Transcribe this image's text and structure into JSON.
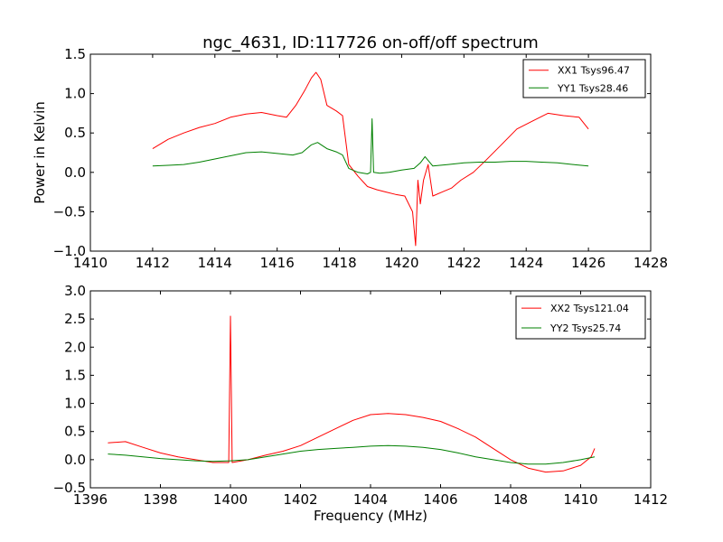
{
  "figure": {
    "title": "ngc_4631, ID:117726 on-off/off spectrum"
  },
  "chart_data": [
    {
      "type": "line",
      "title": "ngc_4631, ID:117726 on-off/off spectrum",
      "xlabel": "",
      "ylabel": "Power in Kelvin",
      "xlim": [
        1410,
        1428
      ],
      "ylim": [
        -1.0,
        1.5
      ],
      "xticks": [
        1410,
        1412,
        1414,
        1416,
        1418,
        1420,
        1422,
        1424,
        1426,
        1428
      ],
      "yticks": [
        -1.0,
        -0.5,
        0.0,
        0.5,
        1.0,
        1.5
      ],
      "grid": false,
      "legend_position": "top-right",
      "series": [
        {
          "name": "XX1 Tsys96.47",
          "color": "#ff0000",
          "x": [
            1412.0,
            1412.5,
            1413.0,
            1413.5,
            1414.0,
            1414.5,
            1415.0,
            1415.5,
            1416.0,
            1416.3,
            1416.6,
            1416.9,
            1417.1,
            1417.25,
            1417.4,
            1417.6,
            1417.9,
            1418.1,
            1418.3,
            1418.6,
            1418.9,
            1419.2,
            1419.5,
            1419.8,
            1420.1,
            1420.35,
            1420.45,
            1420.52,
            1420.6,
            1420.7,
            1420.85,
            1421.0,
            1421.3,
            1421.6,
            1421.9,
            1422.3,
            1422.7,
            1423.2,
            1423.7,
            1424.2,
            1424.7,
            1425.2,
            1425.7,
            1426.0
          ],
          "y": [
            0.3,
            0.42,
            0.5,
            0.57,
            0.62,
            0.7,
            0.74,
            0.76,
            0.72,
            0.7,
            0.85,
            1.05,
            1.2,
            1.27,
            1.18,
            0.85,
            0.78,
            0.72,
            0.1,
            -0.05,
            -0.18,
            -0.22,
            -0.25,
            -0.28,
            -0.3,
            -0.5,
            -0.93,
            -0.1,
            -0.4,
            -0.1,
            0.1,
            -0.3,
            -0.25,
            -0.2,
            -0.1,
            0.0,
            0.15,
            0.35,
            0.55,
            0.65,
            0.75,
            0.72,
            0.7,
            0.55
          ]
        },
        {
          "name": "YY1 Tsys28.46",
          "color": "#008000",
          "x": [
            1412.0,
            1412.5,
            1413.0,
            1413.5,
            1414.0,
            1414.5,
            1415.0,
            1415.5,
            1416.0,
            1416.5,
            1416.8,
            1417.1,
            1417.3,
            1417.6,
            1417.9,
            1418.1,
            1418.3,
            1418.6,
            1418.9,
            1419.0,
            1419.05,
            1419.1,
            1419.3,
            1419.6,
            1420.0,
            1420.4,
            1420.6,
            1420.75,
            1421.0,
            1421.5,
            1422.0,
            1422.5,
            1423.0,
            1423.5,
            1424.0,
            1424.5,
            1425.0,
            1425.5,
            1426.0
          ],
          "y": [
            0.08,
            0.09,
            0.1,
            0.13,
            0.17,
            0.21,
            0.25,
            0.26,
            0.24,
            0.22,
            0.25,
            0.35,
            0.38,
            0.3,
            0.26,
            0.22,
            0.05,
            0.0,
            -0.02,
            0.0,
            0.68,
            0.0,
            -0.01,
            0.0,
            0.03,
            0.05,
            0.12,
            0.2,
            0.08,
            0.1,
            0.12,
            0.13,
            0.13,
            0.14,
            0.14,
            0.13,
            0.12,
            0.1,
            0.08
          ]
        }
      ]
    },
    {
      "type": "line",
      "title": "",
      "xlabel": "Frequency (MHz)",
      "ylabel": "",
      "xlim": [
        1396,
        1412
      ],
      "ylim": [
        -0.5,
        3.0
      ],
      "xticks": [
        1396,
        1398,
        1400,
        1402,
        1404,
        1406,
        1408,
        1410,
        1412
      ],
      "yticks": [
        -0.5,
        0.0,
        0.5,
        1.0,
        1.5,
        2.0,
        2.5,
        3.0
      ],
      "grid": false,
      "legend_position": "top-right",
      "series": [
        {
          "name": "XX2 Tsys121.04",
          "color": "#ff0000",
          "x": [
            1396.5,
            1397.0,
            1397.5,
            1398.0,
            1398.5,
            1399.0,
            1399.5,
            1399.95,
            1400.0,
            1400.05,
            1400.5,
            1401.0,
            1401.5,
            1402.0,
            1402.5,
            1403.0,
            1403.5,
            1404.0,
            1404.5,
            1405.0,
            1405.5,
            1406.0,
            1406.5,
            1407.0,
            1407.5,
            1408.0,
            1408.5,
            1409.0,
            1409.5,
            1410.0,
            1410.3,
            1410.4
          ],
          "y": [
            0.3,
            0.32,
            0.22,
            0.12,
            0.05,
            0.0,
            -0.05,
            -0.05,
            2.55,
            -0.05,
            0.0,
            0.08,
            0.15,
            0.25,
            0.4,
            0.55,
            0.7,
            0.8,
            0.82,
            0.8,
            0.75,
            0.68,
            0.55,
            0.4,
            0.2,
            0.0,
            -0.15,
            -0.22,
            -0.2,
            -0.1,
            0.05,
            0.2
          ]
        },
        {
          "name": "YY2 Tsys25.74",
          "color": "#008000",
          "x": [
            1396.5,
            1397.0,
            1397.5,
            1398.0,
            1398.5,
            1399.0,
            1399.5,
            1400.0,
            1400.5,
            1401.0,
            1401.5,
            1402.0,
            1402.5,
            1403.0,
            1403.5,
            1404.0,
            1404.5,
            1405.0,
            1405.5,
            1406.0,
            1406.5,
            1407.0,
            1407.5,
            1408.0,
            1408.5,
            1409.0,
            1409.5,
            1410.0,
            1410.4
          ],
          "y": [
            0.1,
            0.08,
            0.05,
            0.02,
            0.0,
            -0.02,
            -0.03,
            -0.02,
            0.0,
            0.05,
            0.1,
            0.15,
            0.18,
            0.2,
            0.22,
            0.24,
            0.25,
            0.24,
            0.22,
            0.18,
            0.12,
            0.05,
            0.0,
            -0.05,
            -0.08,
            -0.08,
            -0.05,
            0.0,
            0.05
          ]
        }
      ]
    }
  ]
}
